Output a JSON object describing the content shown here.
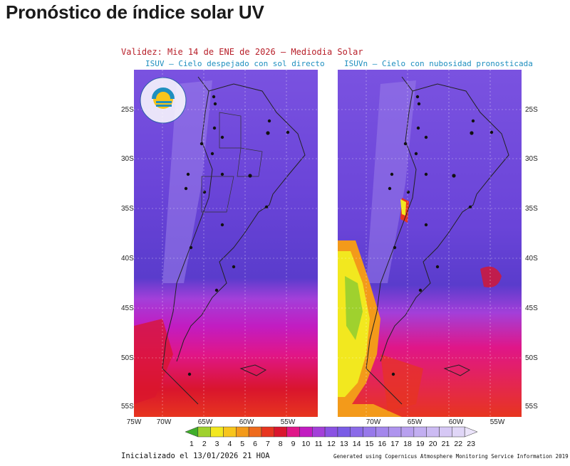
{
  "page": {
    "title": "Pronóstico de índice solar UV"
  },
  "figure": {
    "validity": "Validez: Mie 14 de ENE de 2026 – Mediodia Solar",
    "left_panel_title": "ISUV – Cielo despejado con sol directo",
    "right_panel_title": "ISUVn – Cielo con nubosidad pronosticada",
    "lat_labels": [
      "25S",
      "30S",
      "35S",
      "40S",
      "45S",
      "50S",
      "55S"
    ],
    "lon_labels": [
      "75W",
      "70W",
      "65W",
      "60W",
      "55W"
    ],
    "colorbar": {
      "values": [
        "1",
        "2",
        "3",
        "4",
        "5",
        "6",
        "7",
        "8",
        "9",
        "10",
        "11",
        "12",
        "13",
        "14",
        "15",
        "16",
        "17",
        "18",
        "19",
        "20",
        "21",
        "22",
        "23"
      ],
      "colors": [
        "#3fae2a",
        "#9fd12e",
        "#f2e81f",
        "#f7c51c",
        "#f39a1a",
        "#ee6a1c",
        "#e7351f",
        "#d9152d",
        "#e01688",
        "#c21cc1",
        "#a33fd9",
        "#8a52e3",
        "#7a5ce6",
        "#8a6ae8",
        "#9778ea",
        "#a487ec",
        "#ae94ee",
        "#b8a0ef",
        "#c2aef1",
        "#ccbbf3",
        "#d6c8f5",
        "#e0d6f7",
        "#ebe4fa"
      ]
    },
    "initialized": "Inicializado el 13/01/2026 21 HOA",
    "credit": "Generated using Copernicus Atmosphere Monitoring Service Information 2019",
    "logo_text": "ARGENTINA"
  }
}
